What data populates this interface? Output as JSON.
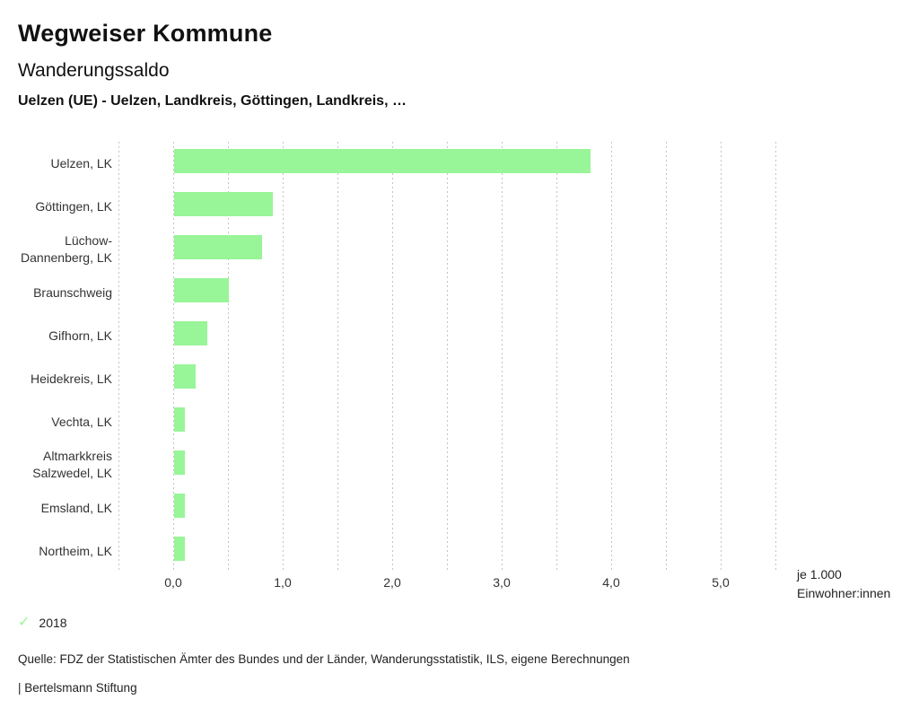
{
  "header": {
    "title": "Wegweiser Kommune",
    "subtitle": "Wanderungssaldo",
    "selection": "Uelzen (UE) - Uelzen, Landkreis, Göttingen, Landkreis, …"
  },
  "chart_data": {
    "type": "bar",
    "orientation": "horizontal",
    "title": "Wanderungssaldo",
    "categories": [
      "Uelzen, LK",
      "Göttingen, LK",
      "Lüchow-\nDannenberg, LK",
      "Braunschweig",
      "Gifhorn, LK",
      "Heidekreis, LK",
      "Vechta, LK",
      "Altmarkkreis\nSalzwedel, LK",
      "Emsland, LK",
      "Northeim, LK"
    ],
    "series": [
      {
        "name": "2018",
        "values": [
          3.8,
          0.9,
          0.8,
          0.5,
          0.3,
          0.2,
          0.1,
          0.1,
          0.1,
          0.1
        ]
      }
    ],
    "xlabel_lines": [
      "je 1.000",
      "Einwohner:innen"
    ],
    "xlim": [
      -0.5,
      5.5
    ],
    "grid_step": 0.5,
    "grid_style": "dotted-vertical",
    "x_ticks": [
      0,
      1,
      2,
      3,
      4,
      5
    ],
    "x_tick_labels": [
      "0,0",
      "1,0",
      "2,0",
      "3,0",
      "4,0",
      "5,0"
    ],
    "legend_position": "bottom-left",
    "bar_color": "#98f598"
  },
  "legend": {
    "check_icon": "✓",
    "year": "2018"
  },
  "footer": {
    "source": "Quelle: FDZ der Statistischen Ämter des Bundes und der Länder, Wanderungsstatistik, ILS, eigene Berechnungen",
    "attribution": "| Bertelsmann Stiftung"
  },
  "colors": {
    "bar": "#98f598",
    "grid": "#c4c4c4",
    "text": "#1a1a1a"
  }
}
